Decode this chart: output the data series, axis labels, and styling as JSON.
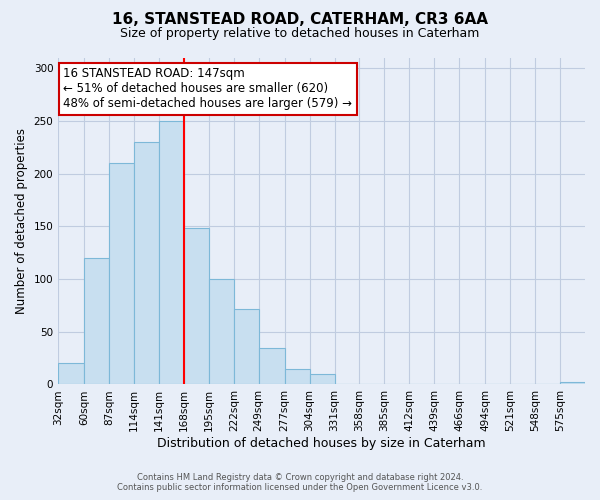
{
  "title": "16, STANSTEAD ROAD, CATERHAM, CR3 6AA",
  "subtitle": "Size of property relative to detached houses in Caterham",
  "xlabel": "Distribution of detached houses by size in Caterham",
  "ylabel": "Number of detached properties",
  "footer_line1": "Contains HM Land Registry data © Crown copyright and database right 2024.",
  "footer_line2": "Contains public sector information licensed under the Open Government Licence v3.0.",
  "bin_labels": [
    "32sqm",
    "60sqm",
    "87sqm",
    "114sqm",
    "141sqm",
    "168sqm",
    "195sqm",
    "222sqm",
    "249sqm",
    "277sqm",
    "304sqm",
    "331sqm",
    "358sqm",
    "385sqm",
    "412sqm",
    "439sqm",
    "466sqm",
    "494sqm",
    "521sqm",
    "548sqm",
    "575sqm"
  ],
  "bar_values": [
    20,
    120,
    210,
    230,
    250,
    148,
    100,
    72,
    35,
    15,
    10,
    0,
    0,
    0,
    0,
    0,
    0,
    0,
    0,
    0,
    2
  ],
  "bar_color": "#c8dff0",
  "bar_edge_color": "#7db8d8",
  "vline_color": "red",
  "annotation_title": "16 STANSTEAD ROAD: 147sqm",
  "annotation_line1": "← 51% of detached houses are smaller (620)",
  "annotation_line2": "48% of semi-detached houses are larger (579) →",
  "annotation_box_color": "white",
  "annotation_box_edge": "#cc0000",
  "ylim": [
    0,
    310
  ],
  "yticks": [
    0,
    50,
    100,
    150,
    200,
    250,
    300
  ],
  "background_color": "#e8eef8",
  "grid_color": "#c0cce0",
  "title_fontsize": 11,
  "subtitle_fontsize": 9
}
